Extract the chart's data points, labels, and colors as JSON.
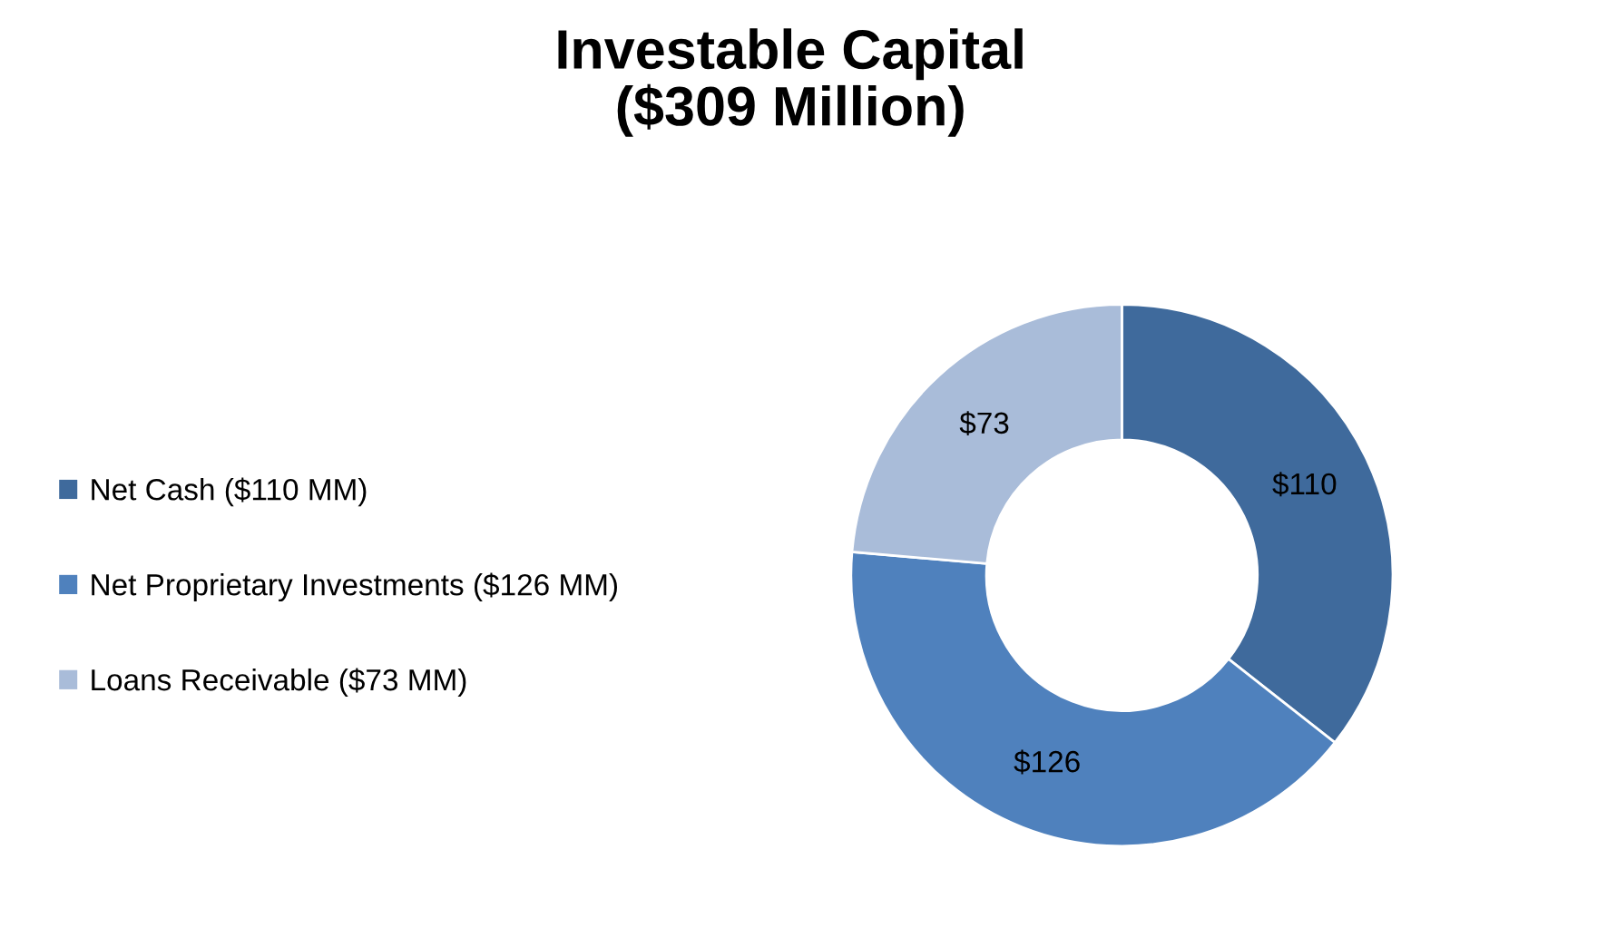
{
  "chart_data": {
    "type": "donut",
    "title": "Investable Capital\n($309 Million)",
    "categories": [
      "Net Cash ($110 MM)",
      "Net Proprietary Investments ($126 MM)",
      "Loans Receivable ($73 MM)"
    ],
    "values": [
      110,
      126,
      73
    ],
    "colors": [
      "#3f6a9c",
      "#4f81bd",
      "#a9bcd9"
    ],
    "value_labels": [
      "$110",
      "$126",
      "$73"
    ],
    "legend": "left"
  }
}
